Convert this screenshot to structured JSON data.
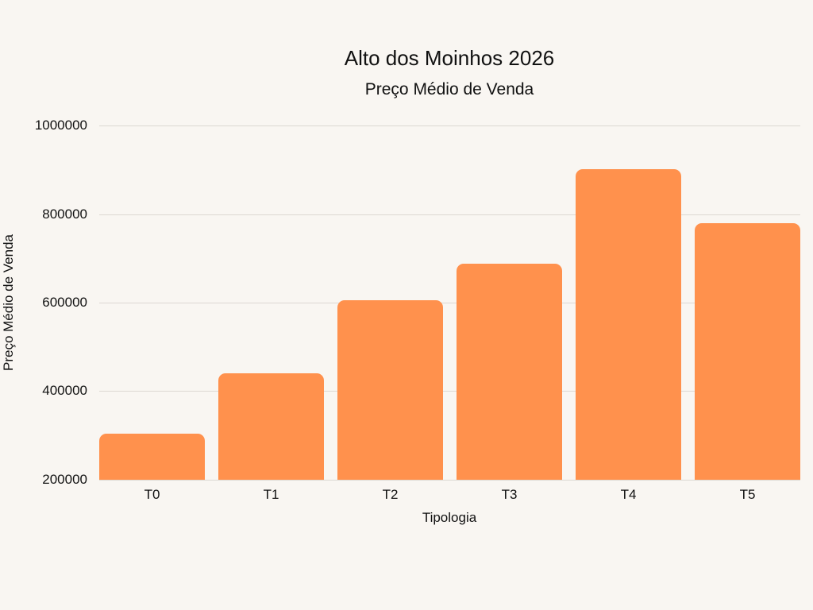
{
  "chart_data": {
    "type": "bar",
    "title": "Alto dos Moinhos 2026",
    "subtitle": "Preço Médio de Venda",
    "xlabel": "Tipologia",
    "ylabel": "Preço Médio de Venda",
    "categories": [
      "T0",
      "T1",
      "T2",
      "T3",
      "T4",
      "T5"
    ],
    "values": [
      304000,
      440000,
      605000,
      688000,
      901000,
      779000
    ],
    "ylim": [
      200000,
      1000000
    ],
    "yticks": [
      "1000000",
      "800000",
      "600000",
      "400000",
      "200000"
    ],
    "grid": true,
    "legend": null,
    "bar_color": "#ff914d"
  }
}
